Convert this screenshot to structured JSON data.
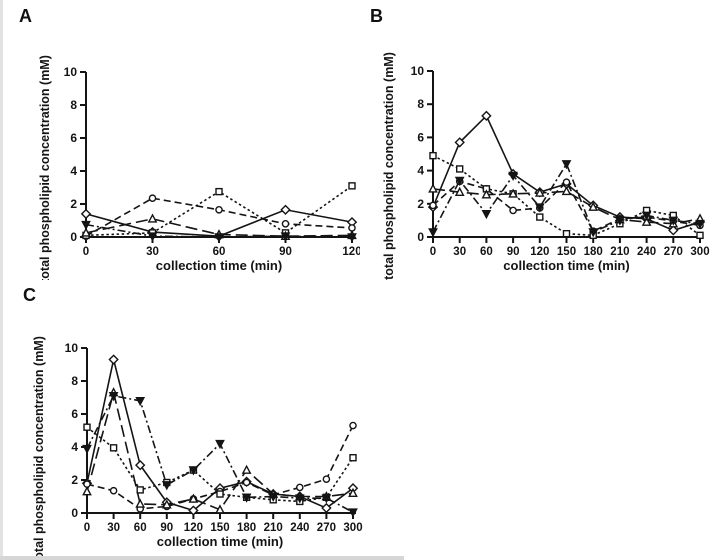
{
  "figure": {
    "background": "#ffffff",
    "ink_color": "#141414",
    "description": "Three-panel line figure of total phospholipid concentration over collection time"
  },
  "chart_data": [
    {
      "panel": "A",
      "type": "line",
      "title": "",
      "xlabel": "collection time (min)",
      "ylabel": "total phospholipid concentration (mM)",
      "x": [
        0,
        30,
        60,
        90,
        120
      ],
      "xticks": [
        0,
        30,
        60,
        90,
        120
      ],
      "yticks": [
        0,
        2,
        4,
        6,
        8,
        10
      ],
      "ylim": [
        0,
        10
      ],
      "grid": false,
      "legend": null,
      "series": [
        {
          "name": "open-diamond",
          "marker": "diamond",
          "fill": "open",
          "line": "solid",
          "values": [
            1.4,
            0.3,
            0.05,
            1.65,
            0.9
          ]
        },
        {
          "name": "open-circle",
          "marker": "circle",
          "fill": "open",
          "line": "dashed",
          "values": [
            0.05,
            2.35,
            1.65,
            0.8,
            0.55
          ]
        },
        {
          "name": "open-square",
          "marker": "square",
          "fill": "open",
          "line": "dotted",
          "values": [
            0.1,
            0.25,
            2.75,
            0.25,
            3.1
          ]
        },
        {
          "name": "open-triangle-up",
          "marker": "triangle-up",
          "fill": "open",
          "line": "long-dash",
          "values": [
            0.25,
            1.1,
            0.15,
            0.05,
            0.1
          ]
        },
        {
          "name": "filled-triangle-down",
          "marker": "triangle-down",
          "fill": "filled",
          "line": "dash-dot",
          "values": [
            0.75,
            0.05,
            0.0,
            0.05,
            0.0
          ]
        }
      ]
    },
    {
      "panel": "B",
      "type": "line",
      "title": "",
      "xlabel": "collection time (min)",
      "ylabel": "total phospholipid concentration (mM)",
      "x": [
        0,
        30,
        60,
        90,
        120,
        150,
        180,
        210,
        240,
        270,
        300
      ],
      "xticks": [
        0,
        30,
        60,
        90,
        120,
        150,
        180,
        210,
        240,
        270,
        300
      ],
      "yticks": [
        0,
        2,
        4,
        6,
        8,
        10
      ],
      "ylim": [
        0,
        10
      ],
      "grid": false,
      "legend": null,
      "series": [
        {
          "name": "open-diamond",
          "marker": "diamond",
          "fill": "open",
          "line": "solid",
          "values": [
            1.8,
            5.7,
            7.3,
            3.8,
            2.7,
            3.2,
            1.9,
            1.2,
            1.1,
            0.4,
            0.9
          ]
        },
        {
          "name": "open-circle",
          "marker": "circle",
          "fill": "open",
          "line": "dashed",
          "values": [
            1.9,
            3.35,
            2.9,
            1.6,
            1.75,
            3.3,
            0.35,
            1.1,
            1.2,
            0.95,
            0.7
          ]
        },
        {
          "name": "open-square",
          "marker": "square",
          "fill": "open",
          "line": "dotted",
          "values": [
            4.9,
            4.1,
            2.9,
            2.6,
            1.2,
            0.2,
            0.1,
            0.8,
            1.6,
            1.3,
            0.1
          ]
        },
        {
          "name": "open-triangle-up",
          "marker": "triangle-up",
          "fill": "open",
          "line": "long-dash",
          "values": [
            2.9,
            2.7,
            2.55,
            2.6,
            2.65,
            2.75,
            1.8,
            1.05,
            0.9,
            0.8,
            1.1
          ]
        },
        {
          "name": "filled-triangle-down",
          "marker": "triangle-down",
          "fill": "filled",
          "line": "dash-dot",
          "values": [
            0.3,
            3.4,
            1.4,
            3.7,
            1.8,
            4.4,
            0.3,
            1.0,
            1.3,
            1.0,
            0.8
          ]
        }
      ]
    },
    {
      "panel": "C",
      "type": "line",
      "title": "",
      "xlabel": "collection time (min)",
      "ylabel": "total phospholipid concentration (mM)",
      "x": [
        0,
        30,
        60,
        90,
        120,
        150,
        180,
        210,
        240,
        270,
        300
      ],
      "xticks": [
        0,
        30,
        60,
        90,
        120,
        150,
        180,
        210,
        240,
        270,
        300
      ],
      "yticks": [
        0,
        2,
        4,
        6,
        8,
        10
      ],
      "ylim": [
        0,
        10
      ],
      "grid": false,
      "legend": null,
      "series": [
        {
          "name": "open-diamond",
          "marker": "diamond",
          "fill": "open",
          "line": "solid",
          "values": [
            1.8,
            9.3,
            2.9,
            0.65,
            0.15,
            1.5,
            1.9,
            1.15,
            1.0,
            0.3,
            1.5
          ]
        },
        {
          "name": "open-circle",
          "marker": "circle",
          "fill": "open",
          "line": "dashed",
          "values": [
            1.75,
            1.35,
            0.25,
            0.4,
            0.85,
            1.3,
            1.85,
            1.1,
            1.55,
            2.05,
            5.3
          ]
        },
        {
          "name": "open-square",
          "marker": "square",
          "fill": "open",
          "line": "dotted",
          "values": [
            5.2,
            3.95,
            1.4,
            1.85,
            2.6,
            1.15,
            0.95,
            0.8,
            0.7,
            0.95,
            3.35
          ]
        },
        {
          "name": "open-triangle-up",
          "marker": "triangle-up",
          "fill": "open",
          "line": "long-dash",
          "values": [
            1.3,
            7.3,
            0.55,
            0.5,
            0.85,
            0.2,
            2.6,
            1.15,
            1.0,
            1.0,
            1.2
          ]
        },
        {
          "name": "filled-triangle-down",
          "marker": "triangle-down",
          "fill": "filled",
          "line": "dash-dot",
          "values": [
            3.9,
            7.1,
            6.8,
            1.7,
            2.6,
            4.2,
            0.95,
            1.0,
            0.9,
            0.9,
            0.05
          ]
        }
      ]
    }
  ]
}
